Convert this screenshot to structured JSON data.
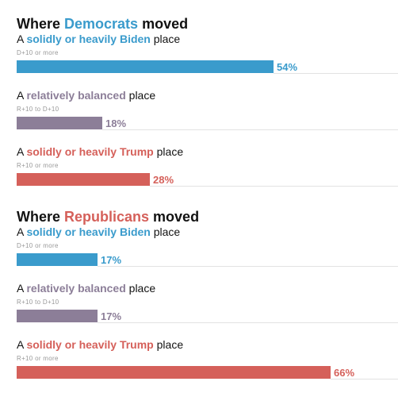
{
  "colors": {
    "biden": "#3a9bcc",
    "balanced": "#8c7e98",
    "trump": "#d5605a",
    "text": "#121212",
    "sublabel": "#999999",
    "divider": "#e2e2e2"
  },
  "chart_data": [
    {
      "type": "bar",
      "orientation": "horizontal",
      "title_parts": [
        {
          "text": "Where ",
          "color": "text"
        },
        {
          "text": "Democrats",
          "color": "biden"
        },
        {
          "text": " moved",
          "color": "text"
        }
      ],
      "xlim": [
        0,
        100
      ],
      "value_suffix": "%",
      "rows": [
        {
          "label_parts": [
            {
              "text": "A ",
              "color": "text"
            },
            {
              "text": "solidly or heavily Biden",
              "color": "biden",
              "bold": true
            },
            {
              "text": " place",
              "color": "text"
            }
          ],
          "sublabel": "D+10 or more",
          "value": 54,
          "value_label": "54%",
          "color": "biden"
        },
        {
          "label_parts": [
            {
              "text": "A ",
              "color": "text"
            },
            {
              "text": "relatively balanced",
              "color": "balanced",
              "bold": true
            },
            {
              "text": " place",
              "color": "text"
            }
          ],
          "sublabel": "R+10 to D+10",
          "value": 18,
          "value_label": "18%",
          "color": "balanced"
        },
        {
          "label_parts": [
            {
              "text": "A ",
              "color": "text"
            },
            {
              "text": "solidly or heavily Trump",
              "color": "trump",
              "bold": true
            },
            {
              "text": " place",
              "color": "text"
            }
          ],
          "sublabel": "R+10 or more",
          "value": 28,
          "value_label": "28%",
          "color": "trump"
        }
      ]
    },
    {
      "type": "bar",
      "orientation": "horizontal",
      "title_parts": [
        {
          "text": "Where ",
          "color": "text"
        },
        {
          "text": "Republicans",
          "color": "trump"
        },
        {
          "text": " moved",
          "color": "text"
        }
      ],
      "xlim": [
        0,
        100
      ],
      "value_suffix": "%",
      "rows": [
        {
          "label_parts": [
            {
              "text": "A ",
              "color": "text"
            },
            {
              "text": "solidly or heavily Biden",
              "color": "biden",
              "bold": true
            },
            {
              "text": " place",
              "color": "text"
            }
          ],
          "sublabel": "D+10 or more",
          "value": 17,
          "value_label": "17%",
          "color": "biden"
        },
        {
          "label_parts": [
            {
              "text": "A ",
              "color": "text"
            },
            {
              "text": "relatively balanced",
              "color": "balanced",
              "bold": true
            },
            {
              "text": " place",
              "color": "text"
            }
          ],
          "sublabel": "R+10 to D+10",
          "value": 17,
          "value_label": "17%",
          "color": "balanced"
        },
        {
          "label_parts": [
            {
              "text": "A ",
              "color": "text"
            },
            {
              "text": "solidly or heavily Trump",
              "color": "trump",
              "bold": true
            },
            {
              "text": " place",
              "color": "text"
            }
          ],
          "sublabel": "R+10 or more",
          "value": 66,
          "value_label": "66%",
          "color": "trump"
        }
      ]
    }
  ]
}
